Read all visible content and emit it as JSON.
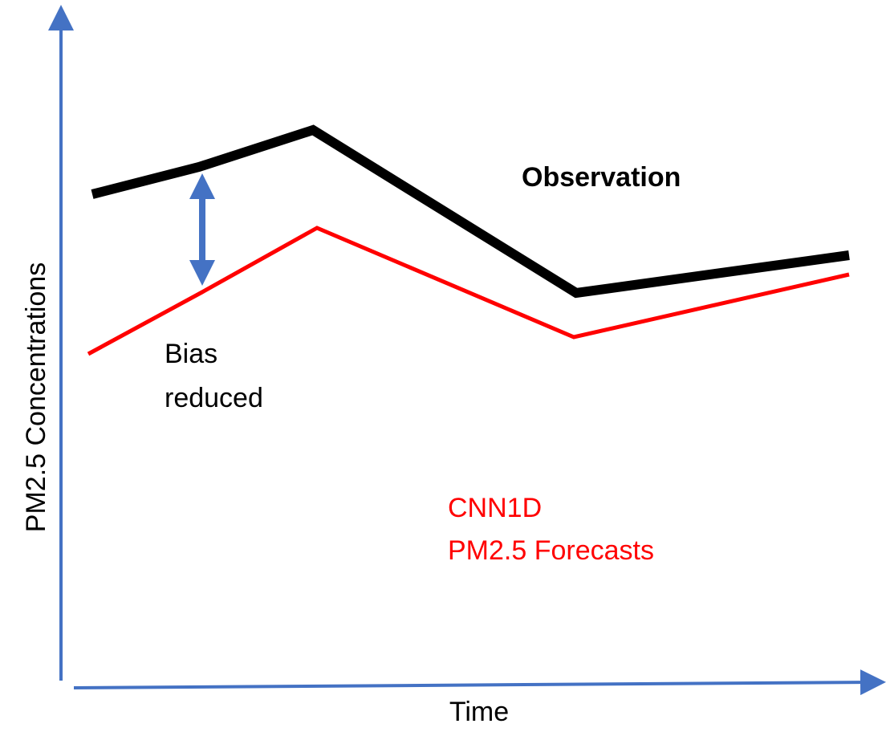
{
  "axes": {
    "y_label": "PM2.5 Concentrations",
    "x_label": "Time"
  },
  "labels": {
    "observation": "Observation",
    "bias": [
      "Bias",
      "reduced"
    ],
    "forecast": [
      "CNN1D",
      "PM2.5 Forecasts"
    ]
  }
}
